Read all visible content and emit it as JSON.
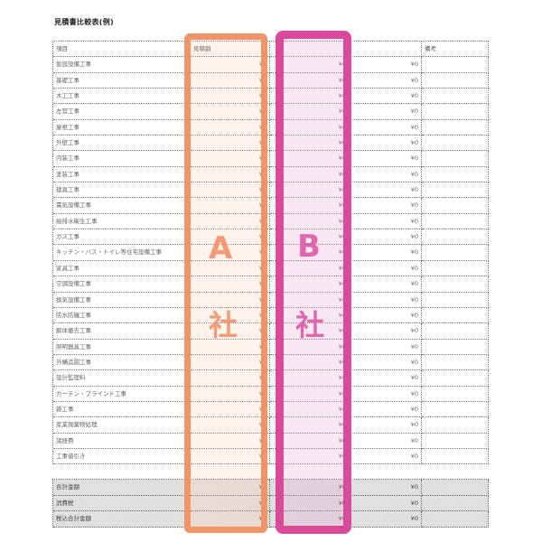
{
  "title": "見積書比較表(例)",
  "header": {
    "item": "項目",
    "a": "見積額",
    "b": "",
    "x": "",
    "note": "備考"
  },
  "rows": [
    {
      "item": "仮設設備工事",
      "v": "¥0"
    },
    {
      "item": "基礎工事",
      "v": "¥0"
    },
    {
      "item": "木工工事",
      "v": "¥0"
    },
    {
      "item": "左官工事",
      "v": "¥0"
    },
    {
      "item": "屋根工事",
      "v": "¥0"
    },
    {
      "item": "外壁工事",
      "v": "¥0"
    },
    {
      "item": "内装工事",
      "v": "¥0"
    },
    {
      "item": "塗装工事",
      "v": "¥0"
    },
    {
      "item": "建具工事",
      "v": "¥0"
    },
    {
      "item": "電気設備工事",
      "v": "¥0"
    },
    {
      "item": "給排水衛生工事",
      "v": "¥0"
    },
    {
      "item": "ガス工事",
      "v": "¥0"
    },
    {
      "item": "キッチン・バス・トイレ等住宅設備工事",
      "v": "¥0"
    },
    {
      "item": "家具工事",
      "v": "¥0"
    },
    {
      "item": "空調設備工事",
      "v": "¥0"
    },
    {
      "item": "換気設備工事",
      "v": "¥0"
    },
    {
      "item": "防水防蟻工事",
      "v": "¥0"
    },
    {
      "item": "解体撤去工事",
      "v": "¥0"
    },
    {
      "item": "照明器具工事",
      "v": "¥0"
    },
    {
      "item": "外構造園工事",
      "v": "¥0"
    },
    {
      "item": "設計監理料",
      "v": "¥0"
    },
    {
      "item": "カーテン・ブラインド工事",
      "v": "¥0"
    },
    {
      "item": "雑工事",
      "v": "¥0"
    },
    {
      "item": "産業廃棄物処理",
      "v": "¥0"
    },
    {
      "item": "諸経費",
      "v": "¥0"
    },
    {
      "item": "工事値引き",
      "v": "¥0"
    }
  ],
  "totals": [
    {
      "item": "合計金額",
      "v": "¥0"
    },
    {
      "item": "消費税",
      "v": "¥0"
    },
    {
      "item": "税込合計金額",
      "v": "¥0"
    }
  ],
  "labels": {
    "a_letter": "A",
    "a_kanji": "社",
    "b_letter": "B",
    "b_kanji": "社"
  },
  "colors": {
    "a_highlight": "#f0956a",
    "b_highlight": "#d94b9a"
  }
}
